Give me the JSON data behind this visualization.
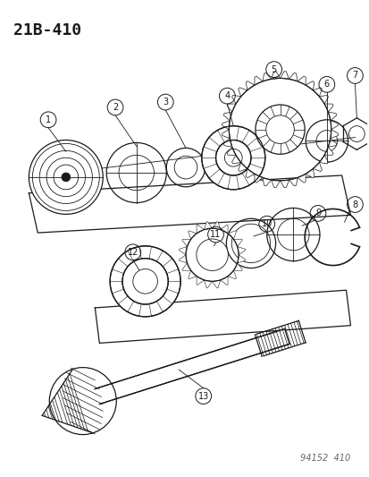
{
  "title": "21B-410",
  "watermark": "94152  410",
  "bg": "#ffffff",
  "lc": "#1a1a1a",
  "figsize": [
    4.14,
    5.33
  ],
  "dpi": 100
}
